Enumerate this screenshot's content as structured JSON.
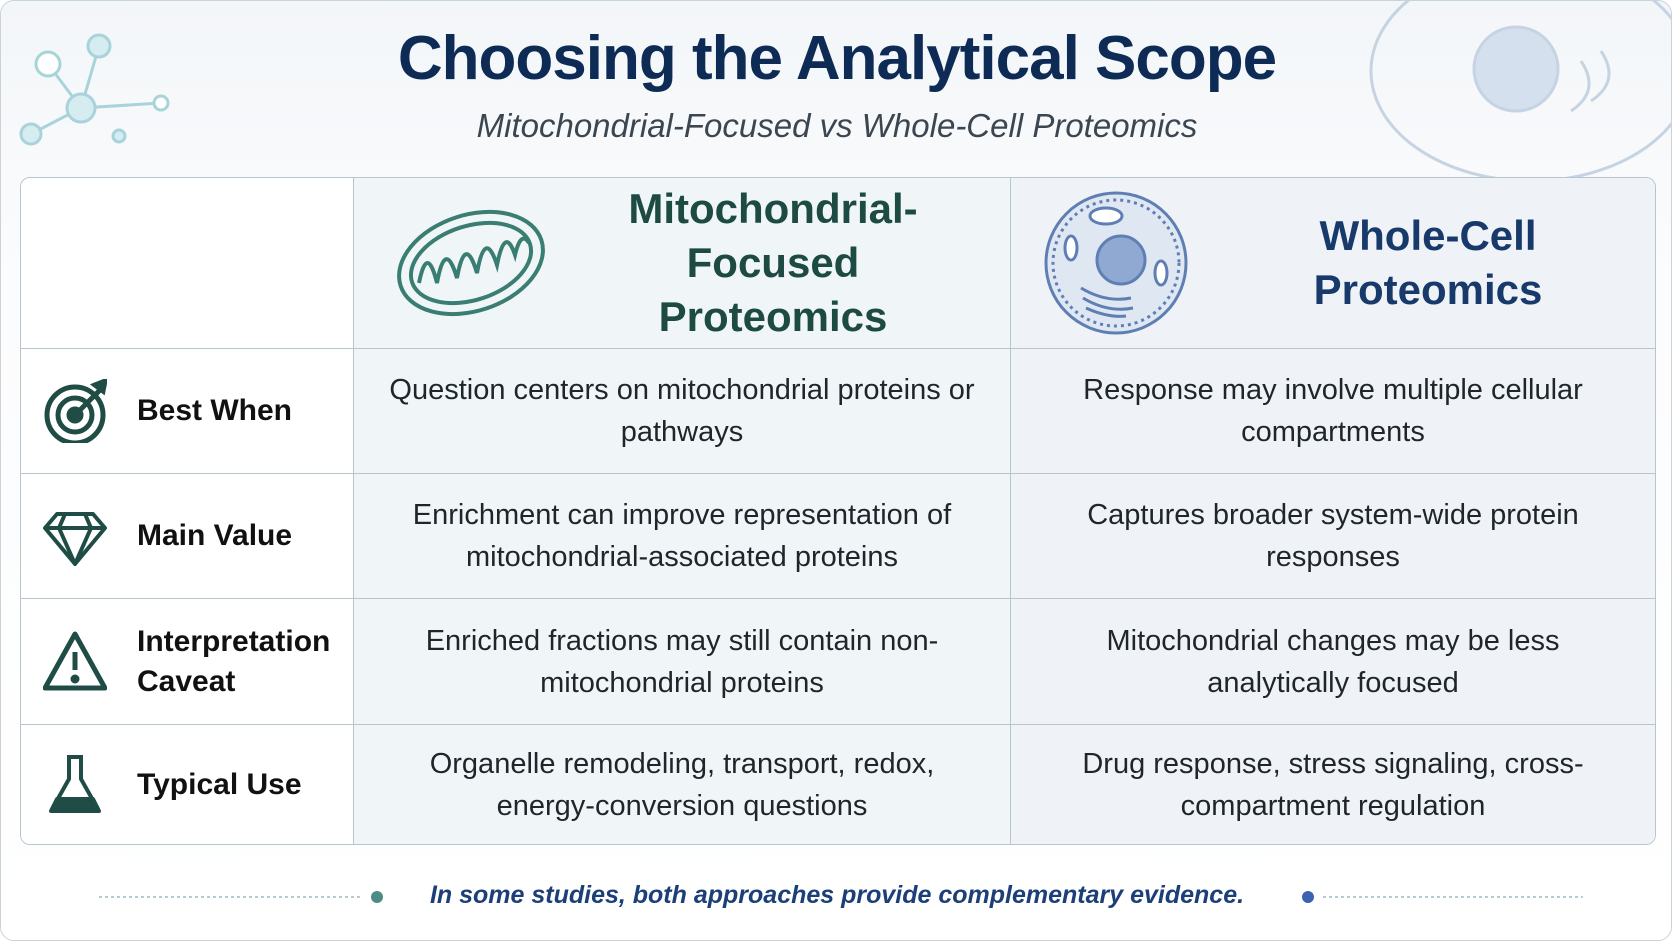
{
  "header": {
    "title": "Choosing the Analytical Scope",
    "subtitle": "Mitochondrial-Focused vs Whole-Cell Proteomics"
  },
  "table": {
    "columns": [
      "Mitochondrial-Focused Proteomics",
      "Whole-Cell Proteomics"
    ],
    "rows": [
      {
        "label": "Best When",
        "cells": [
          "Question centers on mitochondrial proteins or pathways",
          "Response may involve multiple cellular compartments"
        ]
      },
      {
        "label": "Main Value",
        "cells": [
          "Enrichment can improve representation of mitochondrial-associated proteins",
          "Captures broader system-wide protein responses"
        ]
      },
      {
        "label": "Interpretation Caveat",
        "cells": [
          "Enriched fractions may still contain non-mitochondrial proteins",
          "Mitochondrial changes may be less analytically focused"
        ]
      },
      {
        "label": "Typical Use",
        "cells": [
          "Organelle remodeling, transport, redox, energy-conversion questions",
          "Drug response, stress signaling, cross-compartment regulation"
        ]
      }
    ]
  },
  "footer": "In some studies, both approaches provide complementary evidence."
}
